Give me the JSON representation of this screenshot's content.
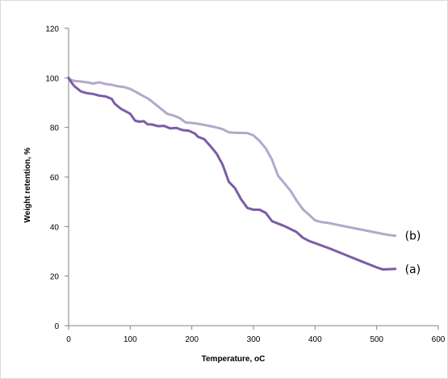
{
  "chart_data": {
    "type": "line",
    "xlabel": "Temperature, oC",
    "ylabel": "Weight retention, %",
    "xlim": [
      0,
      600
    ],
    "ylim": [
      0,
      120
    ],
    "x_ticks": [
      0,
      100,
      200,
      300,
      400,
      500,
      600
    ],
    "y_ticks": [
      0,
      20,
      40,
      60,
      80,
      100,
      120
    ],
    "grid": false,
    "series": [
      {
        "name": "(a)",
        "color": "#7b5ca8",
        "points": [
          [
            0,
            100
          ],
          [
            5,
            98
          ],
          [
            10,
            96.5
          ],
          [
            20,
            94.5
          ],
          [
            30,
            93.8
          ],
          [
            40,
            93.5
          ],
          [
            50,
            92.8
          ],
          [
            60,
            92.5
          ],
          [
            70,
            91.5
          ],
          [
            75,
            89.5
          ],
          [
            85,
            87.5
          ],
          [
            95,
            86.2
          ],
          [
            100,
            85.5
          ],
          [
            108,
            82.7
          ],
          [
            115,
            82.3
          ],
          [
            122,
            82.5
          ],
          [
            128,
            81.3
          ],
          [
            135,
            81.2
          ],
          [
            145,
            80.5
          ],
          [
            155,
            80.6
          ],
          [
            165,
            79.6
          ],
          [
            175,
            79.8
          ],
          [
            185,
            78.9
          ],
          [
            195,
            78.7
          ],
          [
            205,
            77.5
          ],
          [
            210,
            76.2
          ],
          [
            220,
            75.3
          ],
          [
            230,
            72.5
          ],
          [
            240,
            69.5
          ],
          [
            250,
            65
          ],
          [
            260,
            58
          ],
          [
            270,
            55.5
          ],
          [
            280,
            51
          ],
          [
            290,
            47.5
          ],
          [
            300,
            46.8
          ],
          [
            310,
            46.8
          ],
          [
            320,
            45.5
          ],
          [
            330,
            42.2
          ],
          [
            340,
            41.2
          ],
          [
            350,
            40.2
          ],
          [
            360,
            39
          ],
          [
            370,
            37.8
          ],
          [
            380,
            35.5
          ],
          [
            390,
            34.2
          ],
          [
            400,
            33.3
          ],
          [
            425,
            31
          ],
          [
            450,
            28.5
          ],
          [
            475,
            26
          ],
          [
            500,
            23.5
          ],
          [
            510,
            22.7
          ],
          [
            520,
            22.8
          ],
          [
            530,
            22.9
          ]
        ]
      },
      {
        "name": "(b)",
        "color": "#b5a7cc",
        "points": [
          [
            0,
            99.5
          ],
          [
            10,
            98.7
          ],
          [
            20,
            98.5
          ],
          [
            30,
            98.2
          ],
          [
            40,
            97.7
          ],
          [
            50,
            98.2
          ],
          [
            60,
            97.5
          ],
          [
            70,
            97.2
          ],
          [
            80,
            96.6
          ],
          [
            90,
            96.3
          ],
          [
            100,
            95.5
          ],
          [
            110,
            94.2
          ],
          [
            120,
            92.8
          ],
          [
            130,
            91.5
          ],
          [
            140,
            89.5
          ],
          [
            150,
            87.5
          ],
          [
            160,
            85.5
          ],
          [
            170,
            84.8
          ],
          [
            180,
            83.8
          ],
          [
            190,
            82
          ],
          [
            200,
            81.8
          ],
          [
            210,
            81.5
          ],
          [
            220,
            81
          ],
          [
            230,
            80.5
          ],
          [
            240,
            80
          ],
          [
            250,
            79.3
          ],
          [
            260,
            78
          ],
          [
            270,
            77.8
          ],
          [
            280,
            77.8
          ],
          [
            290,
            77.7
          ],
          [
            300,
            76.8
          ],
          [
            310,
            74.5
          ],
          [
            320,
            71.5
          ],
          [
            330,
            67
          ],
          [
            340,
            60.5
          ],
          [
            350,
            57.5
          ],
          [
            360,
            54.5
          ],
          [
            370,
            50.5
          ],
          [
            380,
            47
          ],
          [
            390,
            44.8
          ],
          [
            400,
            42.5
          ],
          [
            410,
            41.8
          ],
          [
            420,
            41.5
          ],
          [
            440,
            40.5
          ],
          [
            460,
            39.5
          ],
          [
            480,
            38.5
          ],
          [
            500,
            37.5
          ],
          [
            520,
            36.6
          ],
          [
            530,
            36.3
          ]
        ]
      }
    ]
  }
}
